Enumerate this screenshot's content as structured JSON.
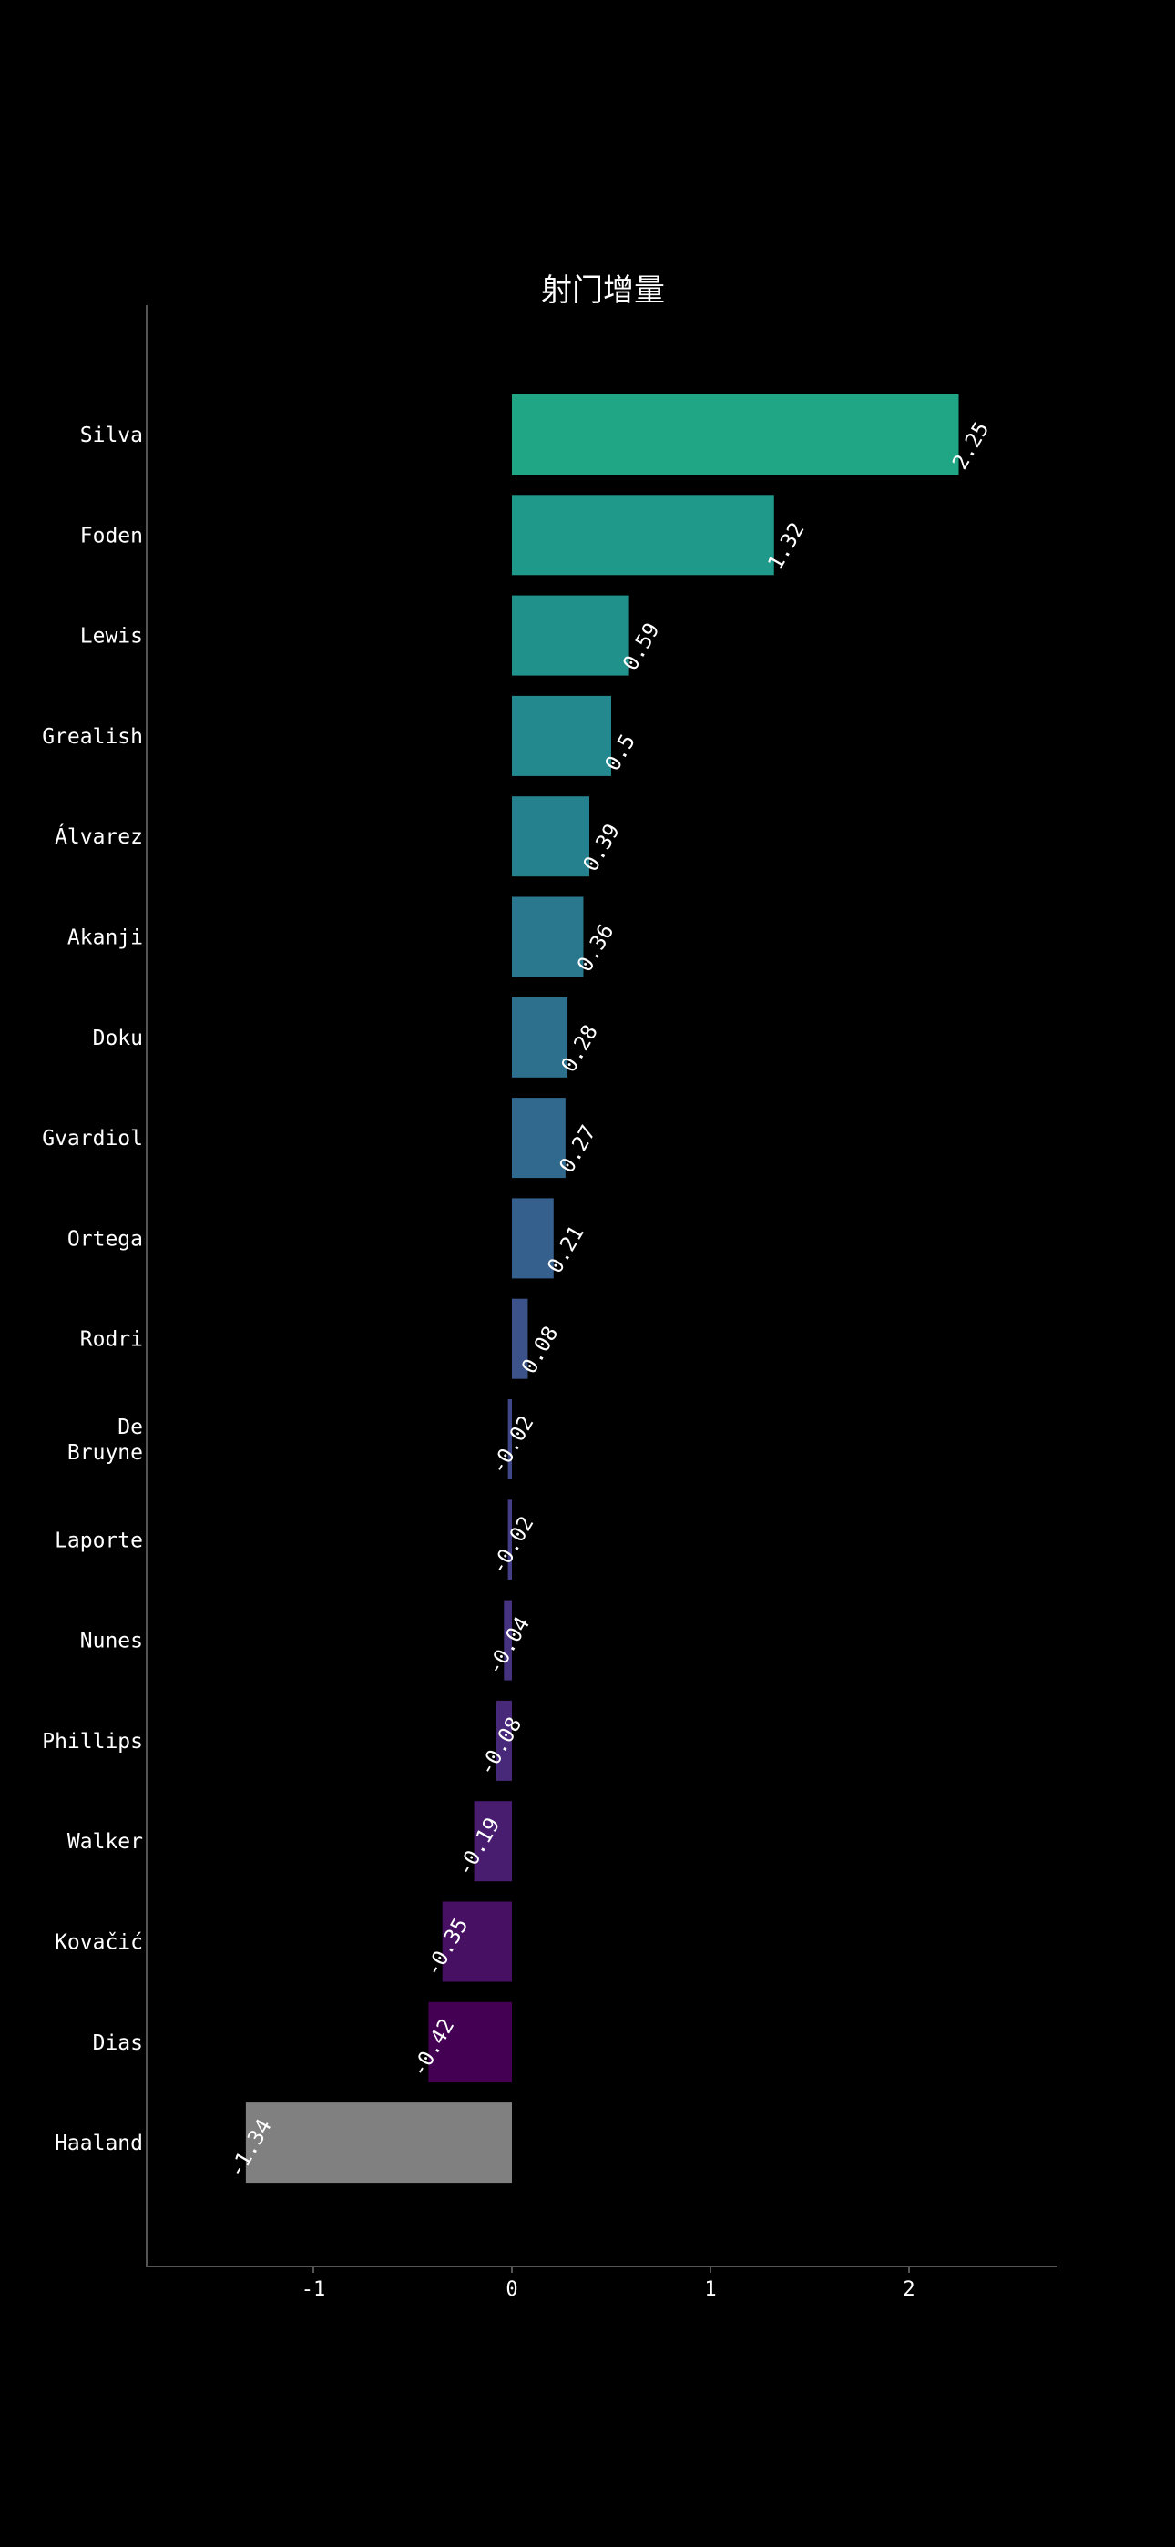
{
  "chart_data": {
    "type": "bar",
    "orientation": "horizontal",
    "title": "射门增量",
    "xlabel": "",
    "ylabel": "",
    "xlim": [
      -1.8,
      2.75
    ],
    "xticks": [
      -1,
      0,
      1,
      2
    ],
    "xtick_labels": [
      "-1",
      "0",
      "1",
      "2"
    ],
    "grid": false,
    "legend": "none",
    "categories": [
      "Silva",
      "Foden",
      "Lewis",
      "Grealish",
      "Álvarez",
      "Akanji",
      "Doku",
      "Gvardiol",
      "Ortega",
      "Rodri",
      "De Bruyne",
      "Laporte",
      "Nunes",
      "Phillips",
      "Walker",
      "Kovačić",
      "Dias",
      "Haaland"
    ],
    "values": [
      2.25,
      1.32,
      0.59,
      0.5,
      0.39,
      0.36,
      0.28,
      0.27,
      0.21,
      0.08,
      -0.02,
      -0.02,
      -0.04,
      -0.08,
      -0.19,
      -0.35,
      -0.42,
      -1.34
    ],
    "value_labels": [
      "2.25",
      "1.32",
      "0.59",
      "0.5",
      "0.39",
      "0.36",
      "0.28",
      "0.27",
      "0.21",
      "0.08",
      "-0.02",
      "-0.02",
      "-0.04",
      "-0.08",
      "-0.19",
      "-0.35",
      "-0.42",
      "-1.34"
    ],
    "colors": [
      "#21a685",
      "#1f9a8a",
      "#21918c",
      "#23898e",
      "#26818e",
      "#2a788e",
      "#2d708e",
      "#31688e",
      "#355f8d",
      "#3b528b",
      "#3f4788",
      "#433e85",
      "#46337f",
      "#482878",
      "#481c6e",
      "#471063",
      "#440154",
      "#808080"
    ],
    "background": "#000000",
    "text_color": "#ffffff",
    "axis_color": "#555555"
  }
}
